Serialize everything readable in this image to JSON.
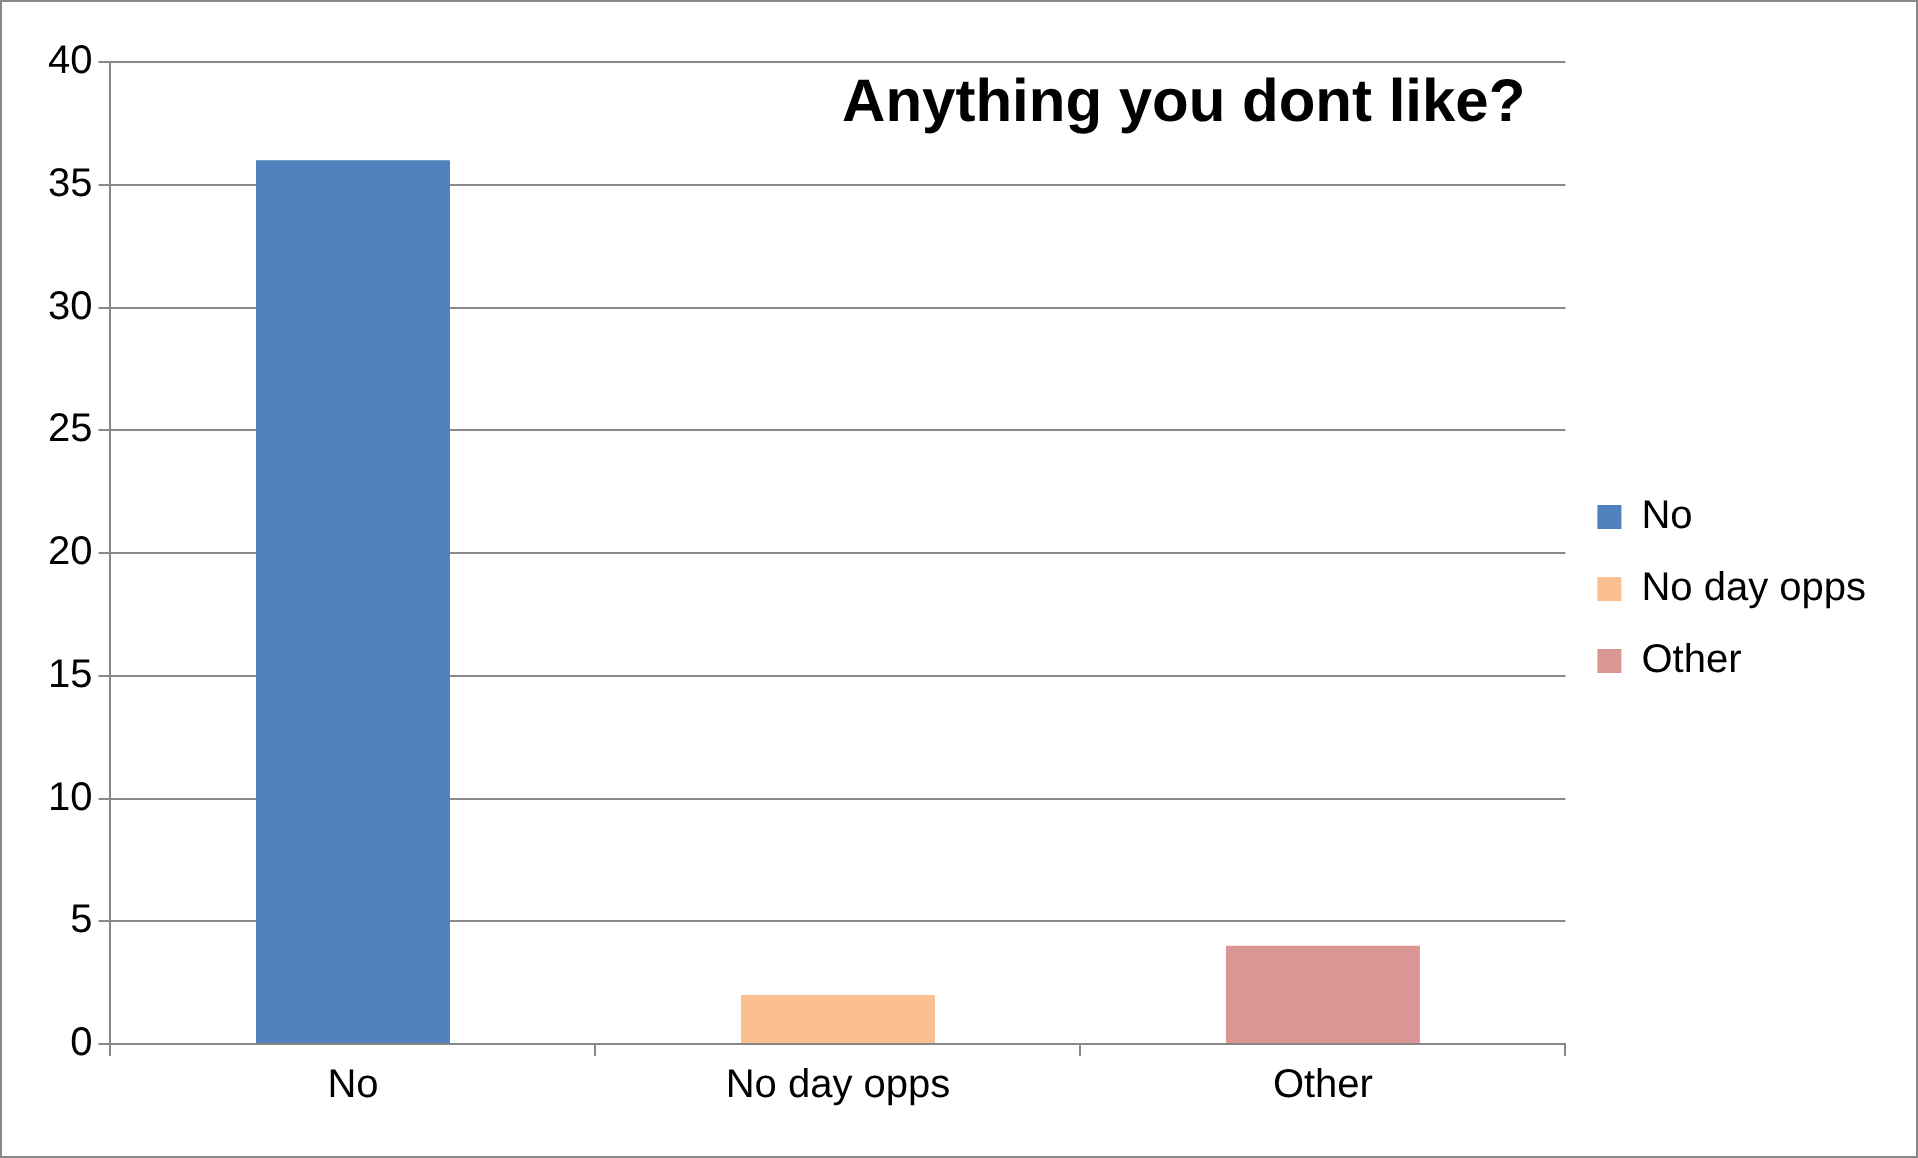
{
  "chart_data": {
    "type": "bar",
    "title": "Anything you dont like?",
    "categories": [
      "No",
      "No day opps",
      "Other"
    ],
    "series": [
      {
        "name": "No",
        "color": "#4f81bd",
        "values": [
          36,
          null,
          null
        ]
      },
      {
        "name": "No day opps",
        "color": "#fac090",
        "values": [
          null,
          2,
          null
        ]
      },
      {
        "name": "Other",
        "color": "#d99694",
        "values": [
          null,
          null,
          4
        ]
      }
    ],
    "ylim": [
      0,
      40
    ],
    "yticks": [
      0,
      5,
      10,
      15,
      20,
      25,
      30,
      35,
      40
    ],
    "grid": "y",
    "legend": "right"
  }
}
